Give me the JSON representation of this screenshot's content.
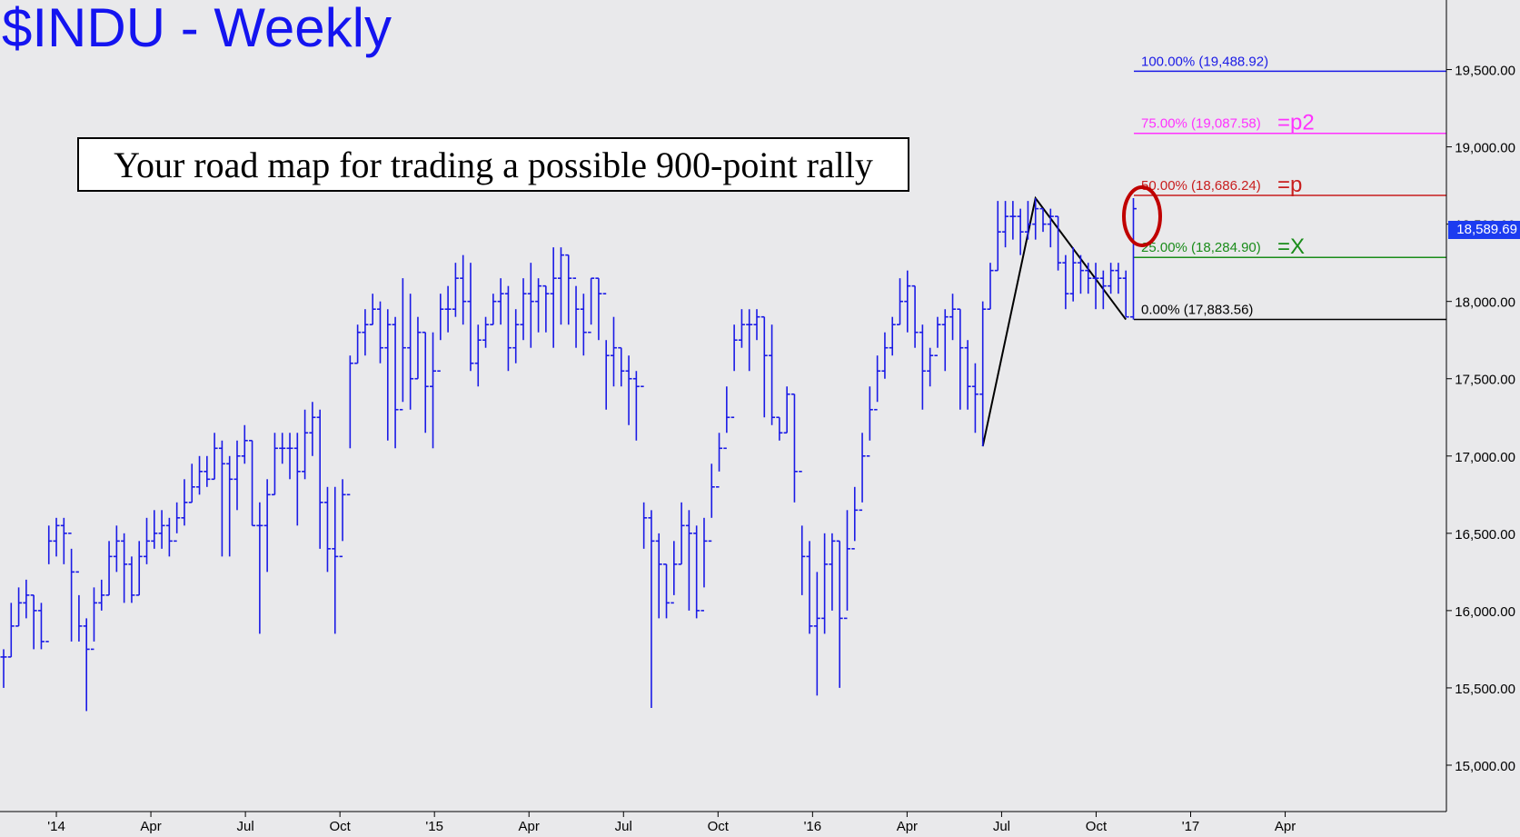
{
  "chart_data": {
    "type": "bar",
    "subtype": "ohlc",
    "title": "$INDU - Weekly",
    "annotation": "Your road map for trading a possible 900-point rally",
    "ylim": [
      14700,
      19950
    ],
    "ytick_labels": [
      "15,000.00",
      "15,500.00",
      "16,000.00",
      "16,500.00",
      "17,000.00",
      "17,500.00",
      "18,000.00",
      "18,500.00",
      "19,000.00",
      "19,500.00"
    ],
    "yticks": [
      15000,
      15500,
      16000,
      16500,
      17000,
      17500,
      18000,
      18500,
      19000,
      19500
    ],
    "x_labels": [
      "'14",
      "Apr",
      "Jul",
      "Oct",
      "'15",
      "Apr",
      "Jul",
      "Oct",
      "'16",
      "Apr",
      "Jul",
      "Oct",
      "'17",
      "Apr"
    ],
    "last_price": "18,589.69",
    "fib_levels": [
      {
        "pct": "100.00%",
        "value": 19488.92,
        "label": "100.00% (19,488.92)",
        "target": "",
        "color": "#1a1ae6"
      },
      {
        "pct": "75.00%",
        "value": 19087.58,
        "label": "75.00% (19,087.58)",
        "target": "=p2",
        "color": "#ff33ff"
      },
      {
        "pct": "50.00%",
        "value": 18686.24,
        "label": "50.00% (18,686.24)",
        "target": "=p",
        "color": "#c81e1e"
      },
      {
        "pct": "25.00%",
        "value": 18284.9,
        "label": "25.00% (18,284.90)",
        "target": "=X",
        "color": "#1a8c1a"
      },
      {
        "pct": "0.00%",
        "value": 17883.56,
        "label": "0.00% (17,883.56)",
        "target": "",
        "color": "#000000"
      }
    ],
    "swing_pattern": [
      {
        "week": 130,
        "value": 17063
      },
      {
        "week": 137,
        "value": 18668
      },
      {
        "week": 149,
        "value": 17883
      }
    ],
    "weekly_closes": [
      15700,
      15900,
      16050,
      16100,
      16000,
      15800,
      16450,
      16550,
      16500,
      16250,
      15900,
      15750,
      16050,
      16100,
      16350,
      16450,
      16300,
      16100,
      16350,
      16450,
      16500,
      16550,
      16450,
      16600,
      16700,
      16800,
      16900,
      16850,
      17050,
      16950,
      16850,
      17000,
      17100,
      16550,
      16550,
      16750,
      17050,
      17050,
      17050,
      16900,
      17150,
      17250,
      16700,
      16400,
      16350,
      16750,
      17600,
      17800,
      17850,
      17950,
      17700,
      17850,
      17300,
      17700,
      17500,
      17800,
      17450,
      17550,
      17950,
      17950,
      18150,
      18000,
      17600,
      17750,
      17850,
      18000,
      18050,
      17700,
      17850,
      18050,
      18000,
      18100,
      18050,
      18150,
      18300,
      18150,
      17950,
      17800,
      18150,
      18050,
      17650,
      17700,
      17550,
      17500,
      17450,
      16600,
      16450,
      16300,
      16050,
      16300,
      16550,
      16500,
      16000,
      16450,
      16800,
      17050,
      17250,
      17750,
      17850,
      17850,
      17900,
      17650,
      17250,
      17150,
      17400,
      16900,
      16350,
      15900,
      15950,
      16300,
      16450,
      15950,
      16400,
      16650,
      17000,
      17300,
      17550,
      17700,
      17850,
      18000,
      18100,
      17800,
      17550,
      17650,
      17850,
      17900,
      17950,
      17700,
      17450,
      17400,
      17950,
      18200,
      18450,
      18550,
      18550,
      18450,
      18500,
      18600,
      18500,
      18550,
      18250,
      18050,
      18250,
      18200,
      18150,
      18150,
      18100,
      18200,
      18150,
      17900,
      18600
    ],
    "weekly_highs": [
      15750,
      16050,
      16150,
      16200,
      16100,
      16050,
      16550,
      16600,
      16600,
      16400,
      16100,
      15950,
      16150,
      16200,
      16450,
      16550,
      16500,
      16350,
      16450,
      16600,
      16650,
      16650,
      16600,
      16700,
      16850,
      16950,
      17000,
      17000,
      17150,
      17100,
      17000,
      17100,
      17200,
      17100,
      16700,
      16850,
      17150,
      17150,
      17150,
      17150,
      17300,
      17350,
      17300,
      16800,
      16800,
      16850,
      17650,
      17850,
      17950,
      18050,
      18000,
      17950,
      17900,
      18150,
      18050,
      17900,
      17800,
      17800,
      18050,
      18100,
      18250,
      18300,
      18250,
      17850,
      17900,
      18050,
      18150,
      18100,
      17950,
      18150,
      18250,
      18150,
      18100,
      18350,
      18350,
      18300,
      18100,
      18050,
      18150,
      18150,
      17750,
      17900,
      17700,
      17650,
      17550,
      16700,
      16650,
      16500,
      16300,
      16450,
      16700,
      16650,
      16550,
      16600,
      16950,
      17150,
      17450,
      17850,
      17950,
      17950,
      17950,
      17900,
      17850,
      17250,
      17450,
      17400,
      16550,
      16450,
      16250,
      16500,
      16500,
      16450,
      16650,
      16800,
      17150,
      17450,
      17650,
      17800,
      17900,
      18150,
      18200,
      18100,
      17850,
      17700,
      17900,
      17950,
      18050,
      17950,
      17750,
      17600,
      18000,
      18250,
      18650,
      18650,
      18650,
      18600,
      18650,
      18668,
      18600,
      18600,
      18550,
      18300,
      18350,
      18300,
      18250,
      18250,
      18200,
      18250,
      18250,
      18200,
      18668
    ],
    "weekly_lows": [
      15500,
      15700,
      15900,
      15950,
      15750,
      15750,
      16300,
      16350,
      16300,
      15800,
      15800,
      15350,
      15800,
      16000,
      16100,
      16250,
      16050,
      16050,
      16100,
      16300,
      16400,
      16400,
      16350,
      16500,
      16550,
      16700,
      16750,
      16800,
      16850,
      16350,
      16350,
      16650,
      16950,
      16550,
      15850,
      16250,
      16750,
      16950,
      16850,
      16550,
      16850,
      17000,
      16400,
      16250,
      15850,
      16450,
      17050,
      17600,
      17650,
      17850,
      17600,
      17100,
      17050,
      17350,
      17300,
      17500,
      17150,
      17050,
      17750,
      17800,
      17900,
      17850,
      17550,
      17450,
      17700,
      17850,
      17850,
      17550,
      17600,
      17750,
      17700,
      17800,
      17800,
      17700,
      17850,
      17850,
      17700,
      17650,
      17850,
      17750,
      17300,
      17450,
      17450,
      17200,
      17100,
      16400,
      15370,
      15950,
      15950,
      16100,
      16300,
      16000,
      15950,
      16150,
      16600,
      16900,
      17150,
      17550,
      17700,
      17550,
      17750,
      17250,
      17200,
      17100,
      17150,
      16700,
      16100,
      15850,
      15450,
      15850,
      16000,
      15500,
      16000,
      16450,
      16700,
      17100,
      17350,
      17500,
      17650,
      17850,
      17800,
      17700,
      17300,
      17450,
      17700,
      17550,
      17750,
      17300,
      17300,
      17150,
      17063,
      17950,
      18200,
      18350,
      18400,
      18300,
      18400,
      18400,
      18450,
      18350,
      18200,
      17950,
      18000,
      18050,
      18050,
      17950,
      17950,
      18050,
      18050,
      17900,
      17883
    ]
  }
}
